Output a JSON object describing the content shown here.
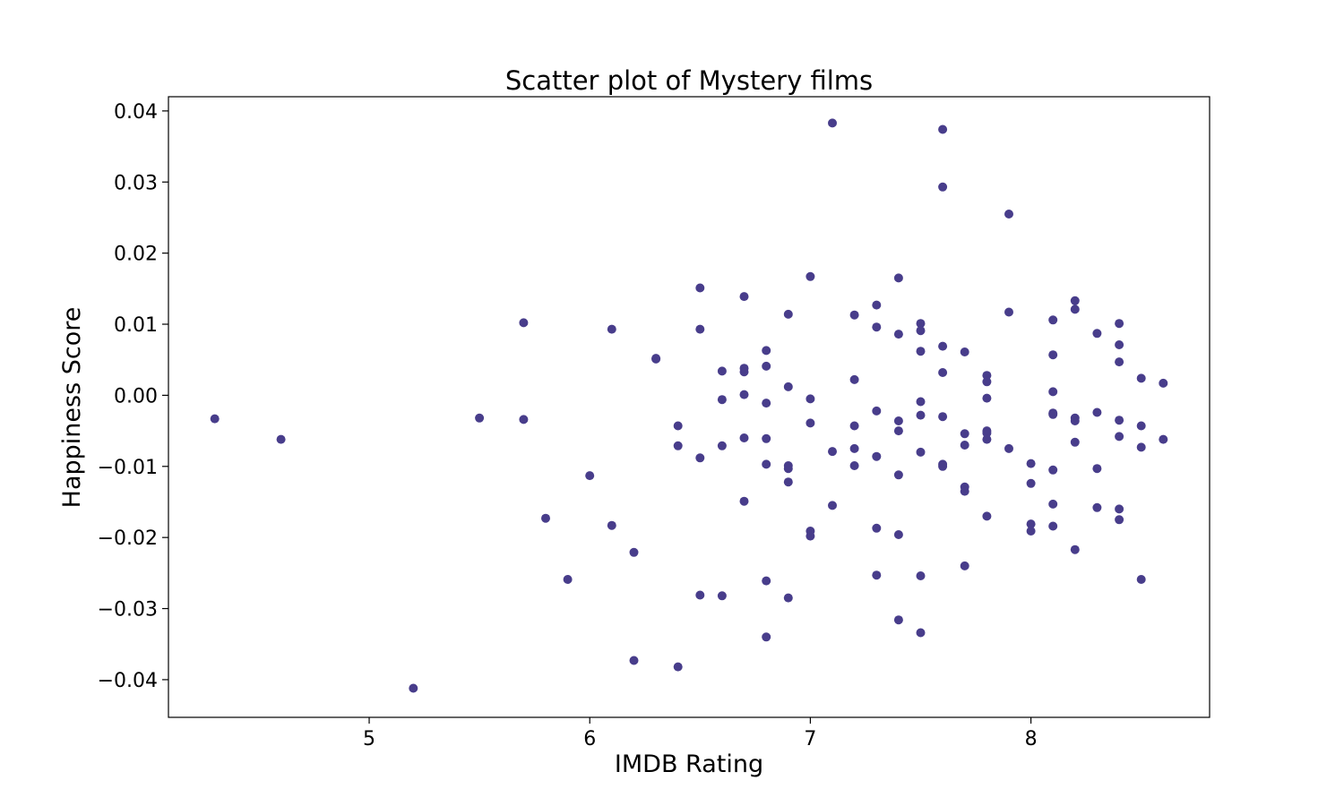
{
  "chart_data": {
    "type": "scatter",
    "title": "Scatter plot of Mystery films",
    "xlabel": "IMDB Rating",
    "ylabel": "Happiness Score",
    "xlim": [
      4.09,
      8.81
    ],
    "ylim": [
      -0.0453,
      0.042
    ],
    "xticks": [
      5,
      6,
      7,
      8
    ],
    "xtick_labels": [
      "5",
      "6",
      "7",
      "8"
    ],
    "yticks": [
      -0.04,
      -0.03,
      -0.02,
      -0.01,
      0.0,
      0.01,
      0.02,
      0.03,
      0.04
    ],
    "ytick_labels": [
      "−0.04",
      "−0.03",
      "−0.02",
      "−0.01",
      "0.00",
      "0.01",
      "0.02",
      "0.03",
      "0.04"
    ],
    "grid": false,
    "marker_color": "#483d8b",
    "points": [
      [
        4.3,
        -0.0033
      ],
      [
        4.6,
        -0.0062
      ],
      [
        5.2,
        -0.0412
      ],
      [
        5.5,
        -0.0032
      ],
      [
        5.7,
        0.0102
      ],
      [
        5.7,
        -0.0034
      ],
      [
        5.8,
        -0.0173
      ],
      [
        5.9,
        -0.0259
      ],
      [
        6.0,
        -0.0113
      ],
      [
        6.1,
        0.0093
      ],
      [
        6.1,
        -0.0183
      ],
      [
        6.2,
        -0.0221
      ],
      [
        6.2,
        -0.0373
      ],
      [
        6.3,
        0.0052
      ],
      [
        6.3,
        0.0051
      ],
      [
        6.4,
        -0.0043
      ],
      [
        6.4,
        -0.0071
      ],
      [
        6.4,
        -0.0382
      ],
      [
        6.5,
        0.0151
      ],
      [
        6.5,
        0.0093
      ],
      [
        6.5,
        -0.0088
      ],
      [
        6.5,
        -0.0281
      ],
      [
        6.6,
        0.0034
      ],
      [
        6.6,
        -0.0006
      ],
      [
        6.6,
        -0.0071
      ],
      [
        6.6,
        -0.0282
      ],
      [
        6.7,
        0.0139
      ],
      [
        6.7,
        0.0038
      ],
      [
        6.7,
        0.0033
      ],
      [
        6.7,
        0.0001
      ],
      [
        6.7,
        -0.006
      ],
      [
        6.7,
        -0.0149
      ],
      [
        6.8,
        0.0063
      ],
      [
        6.8,
        0.0041
      ],
      [
        6.8,
        -0.0011
      ],
      [
        6.8,
        -0.0061
      ],
      [
        6.8,
        -0.0097
      ],
      [
        6.8,
        -0.0261
      ],
      [
        6.8,
        -0.034
      ],
      [
        6.9,
        0.0114
      ],
      [
        6.9,
        0.0012
      ],
      [
        6.9,
        -0.0099
      ],
      [
        6.9,
        -0.0103
      ],
      [
        6.9,
        -0.0122
      ],
      [
        6.9,
        -0.0285
      ],
      [
        7.0,
        0.0167
      ],
      [
        7.0,
        -0.0005
      ],
      [
        7.0,
        -0.0039
      ],
      [
        7.0,
        -0.0191
      ],
      [
        7.0,
        -0.0198
      ],
      [
        7.1,
        0.0383
      ],
      [
        7.1,
        -0.0079
      ],
      [
        7.1,
        -0.0155
      ],
      [
        7.2,
        0.0113
      ],
      [
        7.2,
        0.0022
      ],
      [
        7.2,
        -0.0043
      ],
      [
        7.2,
        -0.0075
      ],
      [
        7.2,
        -0.0099
      ],
      [
        7.3,
        0.0127
      ],
      [
        7.3,
        0.0096
      ],
      [
        7.3,
        -0.0022
      ],
      [
        7.3,
        -0.0086
      ],
      [
        7.3,
        -0.0187
      ],
      [
        7.3,
        -0.0253
      ],
      [
        7.4,
        0.0165
      ],
      [
        7.4,
        0.0086
      ],
      [
        7.4,
        -0.0036
      ],
      [
        7.4,
        -0.005
      ],
      [
        7.4,
        -0.0112
      ],
      [
        7.4,
        -0.0196
      ],
      [
        7.4,
        -0.0316
      ],
      [
        7.5,
        0.0101
      ],
      [
        7.5,
        0.0091
      ],
      [
        7.5,
        0.0062
      ],
      [
        7.5,
        -0.0009
      ],
      [
        7.5,
        -0.0028
      ],
      [
        7.5,
        -0.008
      ],
      [
        7.5,
        -0.0254
      ],
      [
        7.5,
        -0.0334
      ],
      [
        7.6,
        0.0374
      ],
      [
        7.6,
        0.0293
      ],
      [
        7.6,
        0.0069
      ],
      [
        7.6,
        0.0032
      ],
      [
        7.6,
        -0.003
      ],
      [
        7.6,
        -0.0097
      ],
      [
        7.6,
        -0.01
      ],
      [
        7.7,
        0.0061
      ],
      [
        7.7,
        -0.0054
      ],
      [
        7.7,
        -0.007
      ],
      [
        7.7,
        -0.0129
      ],
      [
        7.7,
        -0.0135
      ],
      [
        7.7,
        -0.024
      ],
      [
        7.8,
        0.0028
      ],
      [
        7.8,
        0.0019
      ],
      [
        7.8,
        -0.0004
      ],
      [
        7.8,
        -0.005
      ],
      [
        7.8,
        -0.0053
      ],
      [
        7.8,
        -0.0062
      ],
      [
        7.8,
        -0.017
      ],
      [
        7.9,
        0.0255
      ],
      [
        7.9,
        0.0117
      ],
      [
        7.9,
        -0.0075
      ],
      [
        8.0,
        -0.0096
      ],
      [
        8.0,
        -0.0124
      ],
      [
        8.0,
        -0.0181
      ],
      [
        8.0,
        -0.0191
      ],
      [
        8.1,
        0.0106
      ],
      [
        8.1,
        0.0057
      ],
      [
        8.1,
        0.0005
      ],
      [
        8.1,
        -0.0025
      ],
      [
        8.1,
        -0.0027
      ],
      [
        8.1,
        -0.0105
      ],
      [
        8.1,
        -0.0153
      ],
      [
        8.1,
        -0.0184
      ],
      [
        8.2,
        0.0133
      ],
      [
        8.2,
        0.0121
      ],
      [
        8.2,
        -0.0032
      ],
      [
        8.2,
        -0.0036
      ],
      [
        8.2,
        -0.0066
      ],
      [
        8.2,
        -0.0217
      ],
      [
        8.3,
        0.0087
      ],
      [
        8.3,
        -0.0024
      ],
      [
        8.3,
        -0.0103
      ],
      [
        8.3,
        -0.0158
      ],
      [
        8.4,
        0.0101
      ],
      [
        8.4,
        0.0071
      ],
      [
        8.4,
        0.0047
      ],
      [
        8.4,
        -0.0035
      ],
      [
        8.4,
        -0.0058
      ],
      [
        8.4,
        -0.016
      ],
      [
        8.4,
        -0.0175
      ],
      [
        8.5,
        0.0024
      ],
      [
        8.5,
        -0.0043
      ],
      [
        8.5,
        -0.0073
      ],
      [
        8.5,
        -0.0259
      ],
      [
        8.6,
        0.0017
      ],
      [
        8.6,
        -0.0062
      ]
    ]
  }
}
